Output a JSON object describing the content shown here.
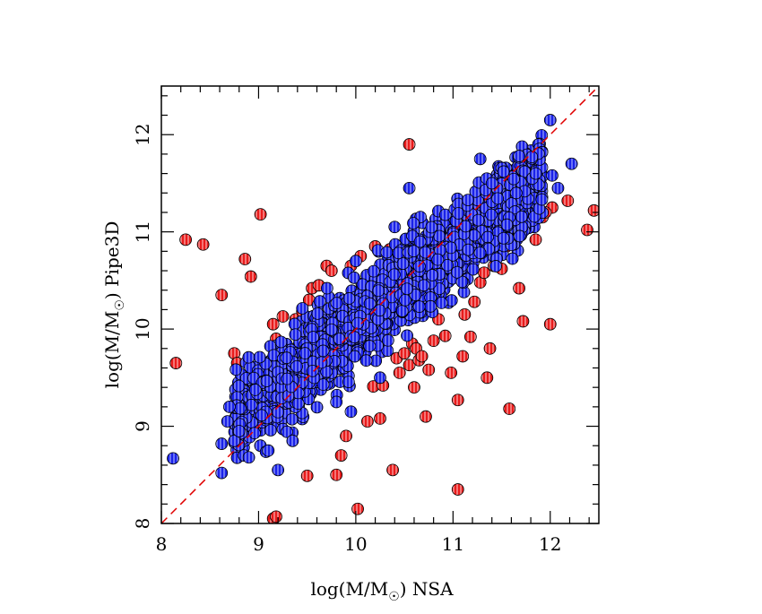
{
  "chart_data": {
    "type": "scatter",
    "title": "",
    "xlabel": {
      "prefix": "log(M/M",
      "subscript": "☉",
      "suffix": ") NSA"
    },
    "ylabel": {
      "prefix": "log(M/M",
      "subscript": "☉",
      "suffix": ") Pipe3D"
    },
    "xlim": [
      8,
      12.5
    ],
    "ylim": [
      8,
      12.5
    ],
    "x_ticks": [
      {
        "value": 8,
        "label": "8"
      },
      {
        "value": 9,
        "label": "9"
      },
      {
        "value": 10,
        "label": "10"
      },
      {
        "value": 11,
        "label": "11"
      },
      {
        "value": 12,
        "label": "12"
      }
    ],
    "y_ticks": [
      {
        "value": 8,
        "label": "8"
      },
      {
        "value": 9,
        "label": "9"
      },
      {
        "value": 10,
        "label": "10"
      },
      {
        "value": 11,
        "label": "11"
      },
      {
        "value": 12,
        "label": "12"
      }
    ],
    "grid": false,
    "legend": "none",
    "reference_line": {
      "style": "dashed",
      "color": "#e00000",
      "from": [
        8,
        8
      ],
      "to": [
        12.5,
        12.5
      ]
    },
    "series": [
      {
        "color": "#e81c1c",
        "points": [
          [
            8.15,
            9.65
          ],
          [
            8.25,
            10.92
          ],
          [
            8.43,
            10.87
          ],
          [
            8.62,
            10.35
          ],
          [
            8.75,
            9.75
          ],
          [
            8.78,
            9.65
          ],
          [
            8.86,
            10.72
          ],
          [
            8.92,
            10.54
          ],
          [
            9.02,
            11.18
          ],
          [
            9.15,
            10.05
          ],
          [
            9.18,
            9.9
          ],
          [
            9.25,
            10.13
          ],
          [
            9.15,
            8.05
          ],
          [
            9.18,
            8.07
          ],
          [
            9.38,
            10.1
          ],
          [
            9.45,
            10.18
          ],
          [
            9.52,
            10.3
          ],
          [
            9.55,
            10.42
          ],
          [
            9.62,
            10.45
          ],
          [
            9.7,
            10.65
          ],
          [
            9.75,
            10.6
          ],
          [
            9.5,
            8.49
          ],
          [
            9.8,
            8.5
          ],
          [
            9.85,
            8.7
          ],
          [
            9.9,
            8.9
          ],
          [
            9.95,
            10.65
          ],
          [
            10.02,
            8.15
          ],
          [
            10.05,
            10.75
          ],
          [
            10.12,
            9.05
          ],
          [
            10.18,
            9.41
          ],
          [
            10.25,
            9.08
          ],
          [
            10.28,
            9.42
          ],
          [
            10.35,
            10.82
          ],
          [
            10.38,
            8.55
          ],
          [
            10.42,
            9.7
          ],
          [
            10.45,
            9.55
          ],
          [
            10.5,
            9.75
          ],
          [
            10.55,
            9.63
          ],
          [
            10.58,
            9.85
          ],
          [
            10.62,
            9.8
          ],
          [
            10.65,
            9.68
          ],
          [
            10.55,
            11.9
          ],
          [
            10.6,
            9.4
          ],
          [
            10.68,
            9.72
          ],
          [
            10.72,
            9.1
          ],
          [
            10.75,
            9.58
          ],
          [
            10.8,
            9.88
          ],
          [
            10.85,
            10.1
          ],
          [
            10.92,
            9.93
          ],
          [
            10.98,
            9.55
          ],
          [
            11.05,
            8.35
          ],
          [
            11.05,
            9.27
          ],
          [
            11.1,
            9.72
          ],
          [
            11.12,
            10.15
          ],
          [
            11.18,
            9.92
          ],
          [
            11.22,
            10.28
          ],
          [
            11.28,
            10.48
          ],
          [
            11.32,
            10.58
          ],
          [
            11.35,
            9.5
          ],
          [
            11.38,
            9.8
          ],
          [
            11.42,
            10.65
          ],
          [
            11.45,
            10.75
          ],
          [
            11.5,
            10.62
          ],
          [
            11.55,
            10.85
          ],
          [
            11.58,
            9.18
          ],
          [
            11.62,
            10.88
          ],
          [
            11.68,
            10.42
          ],
          [
            11.72,
            10.08
          ],
          [
            11.78,
            11.05
          ],
          [
            11.85,
            10.92
          ],
          [
            11.92,
            11.15
          ],
          [
            12.0,
            10.05
          ],
          [
            12.02,
            11.25
          ],
          [
            12.18,
            11.32
          ],
          [
            12.38,
            11.02
          ],
          [
            12.45,
            11.22
          ],
          [
            10.2,
            10.85
          ],
          [
            11.95,
            11.2
          ]
        ]
      },
      {
        "color": "#1a22e8",
        "dense_band": {
          "x_from": 8.75,
          "x_to": 11.92,
          "slope": 0.78,
          "intercept_at_9": 9.28,
          "spread": 0.42,
          "count": 2200
        },
        "points": [
          [
            8.12,
            8.67
          ],
          [
            8.62,
            8.52
          ],
          [
            8.62,
            8.82
          ],
          [
            8.68,
            9.05
          ],
          [
            8.7,
            9.2
          ],
          [
            8.75,
            8.85
          ],
          [
            8.8,
            8.95
          ],
          [
            8.85,
            8.7
          ],
          [
            8.9,
            8.68
          ],
          [
            9.2,
            8.55
          ],
          [
            9.35,
            8.85
          ],
          [
            9.1,
            8.75
          ],
          [
            10.55,
            11.45
          ],
          [
            11.28,
            11.75
          ],
          [
            11.52,
            11.62
          ],
          [
            11.85,
            11.6
          ],
          [
            12.02,
            11.58
          ],
          [
            12.08,
            11.45
          ],
          [
            12.22,
            11.7
          ],
          [
            12.0,
            12.15
          ],
          [
            11.4,
            11.5
          ],
          [
            11.65,
            11.4
          ],
          [
            10.4,
            11.05
          ],
          [
            10.0,
            10.7
          ],
          [
            9.8,
            9.25
          ],
          [
            10.25,
            9.5
          ],
          [
            9.95,
            9.15
          ],
          [
            10.7,
            10.45
          ]
        ]
      }
    ]
  }
}
